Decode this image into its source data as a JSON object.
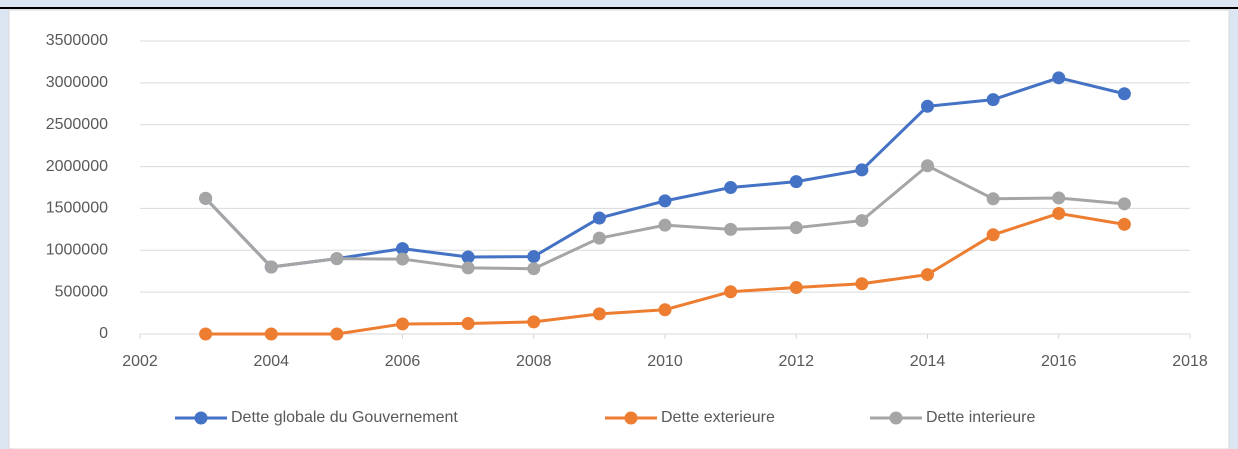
{
  "chart_data": {
    "type": "line",
    "x": [
      2003,
      2004,
      2005,
      2006,
      2007,
      2008,
      2009,
      2010,
      2011,
      2012,
      2013,
      2014,
      2015,
      2016,
      2017
    ],
    "series": [
      {
        "name": "Dette globale du Gouvernement",
        "color": "#4472c4",
        "values": [
          1620000,
          800000,
          900000,
          1020000,
          920000,
          925000,
          1385000,
          1590000,
          1750000,
          1820000,
          1960000,
          2720000,
          2800000,
          3060000,
          2870000
        ]
      },
      {
        "name": "Dette exterieure",
        "color": "#ed7d31",
        "values": [
          0,
          0,
          0,
          120000,
          125000,
          145000,
          240000,
          290000,
          505000,
          555000,
          600000,
          710000,
          1185000,
          1440000,
          1310000
        ]
      },
      {
        "name": "Dette interieure",
        "color": "#a5a5a5",
        "values": [
          1620000,
          800000,
          900000,
          895000,
          790000,
          780000,
          1145000,
          1300000,
          1250000,
          1270000,
          1355000,
          2010000,
          1615000,
          1625000,
          1555000
        ]
      }
    ],
    "xlim": [
      2002,
      2018
    ],
    "xticks": [
      2002,
      2004,
      2006,
      2008,
      2010,
      2012,
      2014,
      2016,
      2018
    ],
    "ylim": [
      0,
      3500000
    ],
    "yticks": [
      0,
      500000,
      1000000,
      1500000,
      2000000,
      2500000,
      3000000,
      3500000
    ],
    "grid": true,
    "legend": "bottom"
  }
}
